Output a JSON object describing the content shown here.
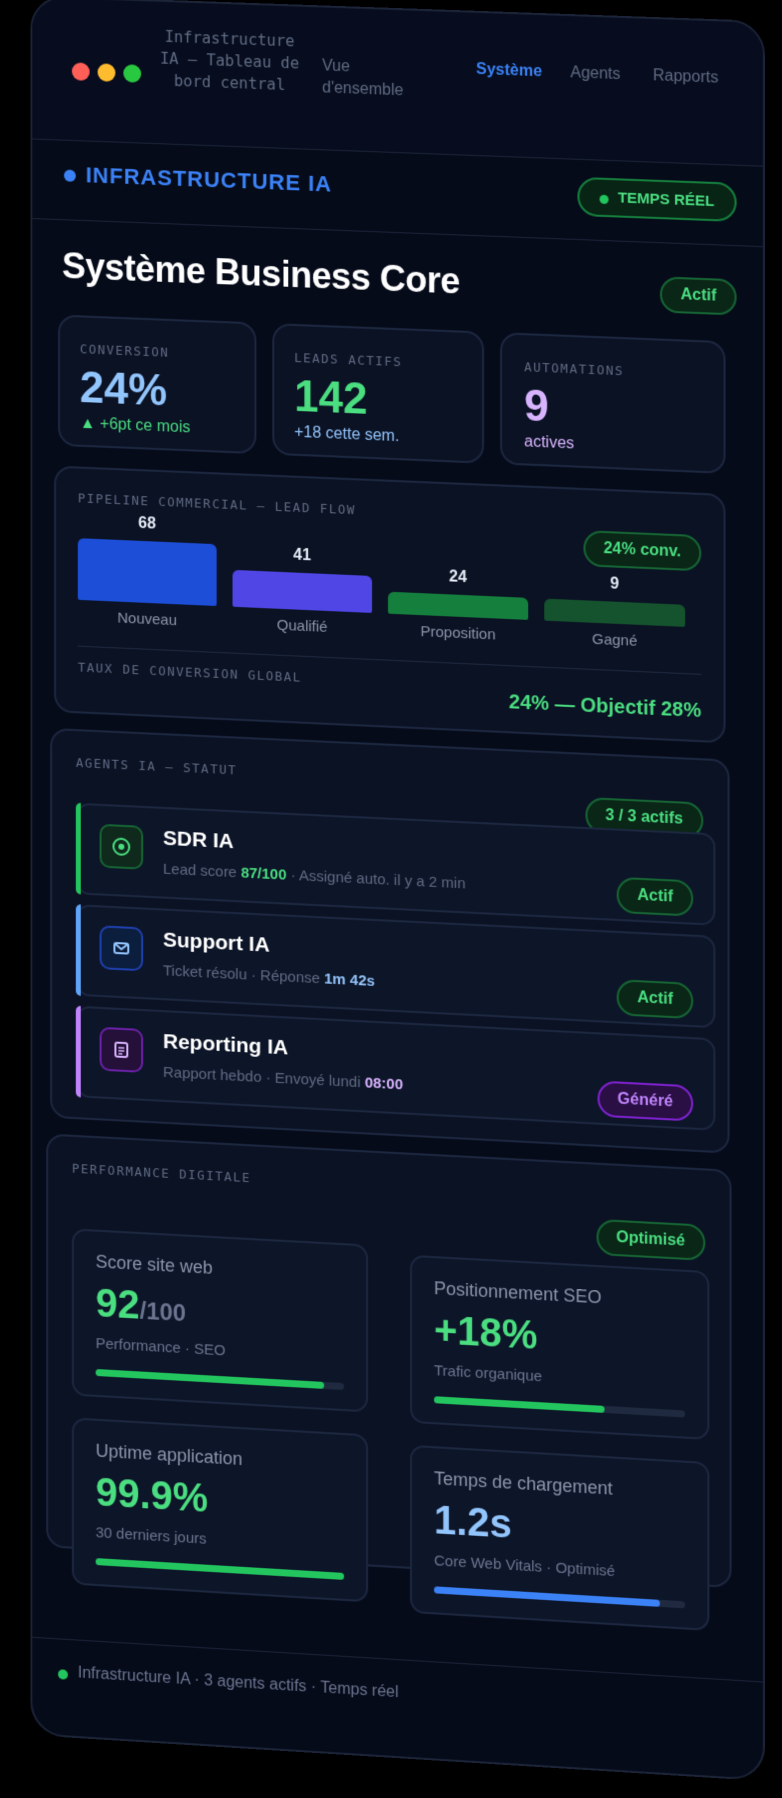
{
  "window": {
    "title": "Infrastructure IA — Tableau de bord central",
    "nav": [
      "Vue d'ensemble",
      "Système",
      "Agents",
      "Rapports"
    ],
    "active_nav": "Système"
  },
  "header": {
    "brand": "INFRASTRUCTURE IA",
    "live_badge": "TEMPS RÉEL"
  },
  "page": {
    "title": "Système Business Core",
    "status": "Actif"
  },
  "kpis": [
    {
      "label": "CONVERSION",
      "value": "24%",
      "sub": "▲ +6pt ce mois",
      "color": "#60a5fa"
    },
    {
      "label": "LEADS ACTIFS",
      "value": "142",
      "sub": "+18 cette sem.",
      "color": "#4ade80"
    },
    {
      "label": "AUTOMATIONS",
      "value": "9",
      "sub": "actives",
      "color": "#d8b4fe"
    }
  ],
  "pipeline": {
    "label": "PIPELINE COMMERCIAL — LEAD FLOW",
    "badge": "24% conv.",
    "stages": [
      {
        "name": "Nouveau",
        "value": "68",
        "count": 68,
        "color": "#1d4ed8"
      },
      {
        "name": "Qualifié",
        "value": "41",
        "count": 41,
        "color": "#4f46e5"
      },
      {
        "name": "Proposition",
        "value": "24",
        "count": 24,
        "color": "#15803d"
      },
      {
        "name": "Gagné",
        "value": "9",
        "count": 9,
        "color": "#14532d"
      }
    ],
    "global_label": "TAUX DE CONVERSION GLOBAL",
    "global_value": "24% — Objectif 28%"
  },
  "agents": {
    "label": "AGENTS IA — STATUT",
    "badge": "3 / 3 actifs",
    "items": [
      {
        "name": "SDR IA",
        "desc_pre": "Lead score ",
        "desc_val": "87/100",
        "desc_post": " · Assigné auto. il y a 2 min",
        "status": "Actif",
        "accent": "#22c55e",
        "icon": "target-icon"
      },
      {
        "name": "Support IA",
        "desc_pre": "Ticket résolu · Réponse ",
        "desc_val": "1m 42s",
        "desc_post": "",
        "status": "Actif",
        "accent": "#60a5fa",
        "icon": "mail-icon"
      },
      {
        "name": "Reporting IA",
        "desc_pre": "Rapport hebdo · Envoyé lundi ",
        "desc_val": "08:00",
        "desc_post": "",
        "status": "Généré",
        "accent": "#c084fc",
        "icon": "document-icon"
      }
    ]
  },
  "performance": {
    "label": "PERFORMANCE DIGITALE",
    "badge": "Optimisé",
    "tiles": [
      {
        "title": "Score site web",
        "value": "92",
        "suffix": "/100",
        "desc": "Performance · SEO",
        "progress": 0.92,
        "color": "#22c55e"
      },
      {
        "title": "Positionnement SEO",
        "value": "+18%",
        "suffix": "",
        "desc": "Trafic organique",
        "progress": 0.68,
        "color": "#22c55e"
      },
      {
        "title": "Uptime application",
        "value": "99.9%",
        "suffix": "",
        "desc": "30 derniers jours",
        "progress": 0.999,
        "color": "#22c55e"
      },
      {
        "title": "Temps de chargement",
        "value": "1.2s",
        "suffix": "",
        "desc": "Core Web Vitals · Optimisé",
        "progress": 0.9,
        "color": "#3b82f6",
        "value_color": "#93c5fd"
      }
    ]
  },
  "footer": {
    "text": "Infrastructure IA · 3 agents actifs · Temps réel"
  }
}
